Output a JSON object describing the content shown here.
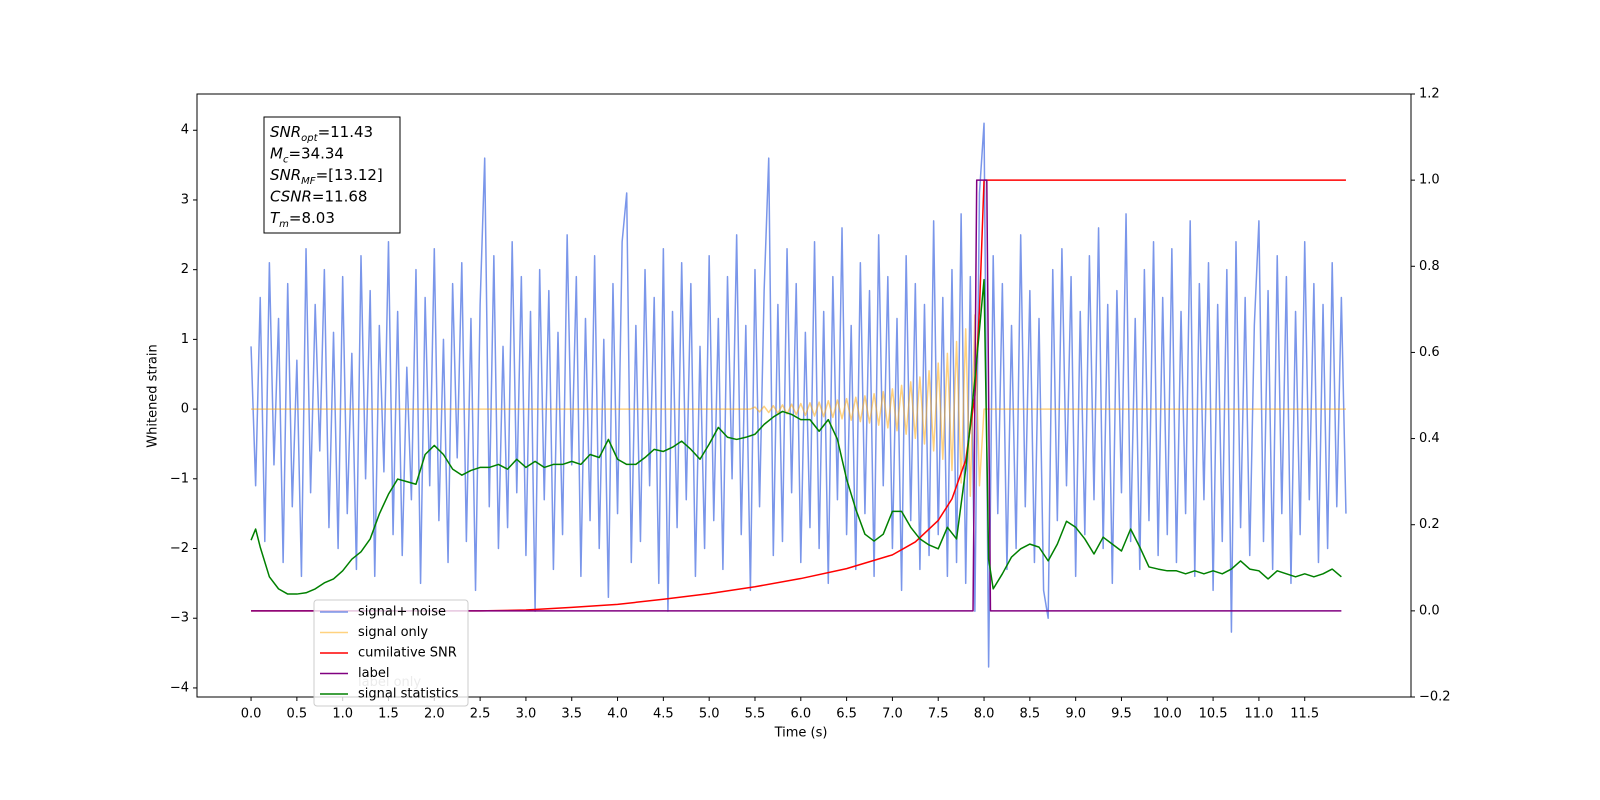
{
  "chart_data": {
    "type": "line",
    "xlabel": "Time (s)",
    "ylabel": "Whitened strain",
    "xlim": [
      -0.59,
      12.66
    ],
    "ylim": [
      -4.13,
      4.52
    ],
    "y2lim": [
      -0.2,
      1.2
    ],
    "xticks": [
      {
        "value": 0,
        "label": "0.0"
      },
      {
        "value": 0.5,
        "label": "0.5"
      },
      {
        "value": 1,
        "label": "1.0"
      },
      {
        "value": 1.5,
        "label": "1.5"
      },
      {
        "value": 2,
        "label": "2.0"
      },
      {
        "value": 2.5,
        "label": "2.5"
      },
      {
        "value": 3,
        "label": "3.0"
      },
      {
        "value": 3.5,
        "label": "3.5"
      },
      {
        "value": 4,
        "label": "4.0"
      },
      {
        "value": 4.5,
        "label": "4.5"
      },
      {
        "value": 5,
        "label": "5.0"
      },
      {
        "value": 5.5,
        "label": "5.5"
      },
      {
        "value": 6,
        "label": "6.0"
      },
      {
        "value": 6.5,
        "label": "6.5"
      },
      {
        "value": 7,
        "label": "7.0"
      },
      {
        "value": 7.5,
        "label": "7.5"
      },
      {
        "value": 8,
        "label": "8.0"
      },
      {
        "value": 8.5,
        "label": "8.5"
      },
      {
        "value": 9,
        "label": "9.0"
      },
      {
        "value": 9.5,
        "label": "9.5"
      },
      {
        "value": 10,
        "label": "10.0"
      },
      {
        "value": 10.5,
        "label": "10.5"
      },
      {
        "value": 11,
        "label": "11.0"
      },
      {
        "value": 11.5,
        "label": "11.5"
      }
    ],
    "yticks": [
      {
        "value": -4,
        "label": "−4"
      },
      {
        "value": -3,
        "label": "−3"
      },
      {
        "value": -2,
        "label": "−2"
      },
      {
        "value": -1,
        "label": "−1"
      },
      0,
      1,
      2,
      3,
      4
    ],
    "y2ticks": [
      {
        "value": -0.2,
        "label": "−0.2"
      },
      {
        "value": 0,
        "label": "0.0"
      },
      {
        "value": 0.2,
        "label": "0.2"
      },
      {
        "value": 0.4,
        "label": "0.4"
      },
      {
        "value": 0.6,
        "label": "0.6"
      },
      {
        "value": 0.8,
        "label": "0.8"
      },
      {
        "value": 1,
        "label": "1.0"
      },
      {
        "value": 1.2,
        "label": "1.2"
      }
    ],
    "grid": false,
    "x": [
      0,
      0.05,
      0.1,
      0.15,
      0.2,
      0.25,
      0.3,
      0.35,
      0.4,
      0.45,
      0.5,
      0.55,
      0.6,
      0.65,
      0.7,
      0.75,
      0.8,
      0.85,
      0.9,
      0.95,
      1,
      1.05,
      1.1,
      1.15,
      1.2,
      1.25,
      1.3,
      1.35,
      1.4,
      1.45,
      1.5,
      1.55,
      1.6,
      1.65,
      1.7,
      1.75,
      1.8,
      1.85,
      1.9,
      1.95,
      2,
      2.05,
      2.1,
      2.15,
      2.2,
      2.25,
      2.3,
      2.35,
      2.4,
      2.45,
      2.5,
      2.55,
      2.6,
      2.65,
      2.7,
      2.75,
      2.8,
      2.85,
      2.9,
      2.95,
      3,
      3.05,
      3.1,
      3.15,
      3.2,
      3.25,
      3.3,
      3.35,
      3.4,
      3.45,
      3.5,
      3.55,
      3.6,
      3.65,
      3.7,
      3.75,
      3.8,
      3.85,
      3.9,
      3.95,
      4,
      4.05,
      4.1,
      4.15,
      4.2,
      4.25,
      4.3,
      4.35,
      4.4,
      4.45,
      4.5,
      4.55,
      4.6,
      4.65,
      4.7,
      4.75,
      4.8,
      4.85,
      4.9,
      4.95,
      5,
      5.05,
      5.1,
      5.15,
      5.2,
      5.25,
      5.3,
      5.35,
      5.4,
      5.45,
      5.5,
      5.55,
      5.6,
      5.65,
      5.7,
      5.75,
      5.8,
      5.85,
      5.9,
      5.95,
      6,
      6.05,
      6.1,
      6.15,
      6.2,
      6.25,
      6.3,
      6.35,
      6.4,
      6.45,
      6.5,
      6.55,
      6.6,
      6.65,
      6.7,
      6.75,
      6.8,
      6.85,
      6.9,
      6.95,
      7,
      7.05,
      7.1,
      7.15,
      7.2,
      7.25,
      7.3,
      7.35,
      7.4,
      7.45,
      7.5,
      7.55,
      7.6,
      7.65,
      7.7,
      7.75,
      7.8,
      7.85,
      7.9,
      7.95,
      8,
      8.05,
      8.1,
      8.15,
      8.2,
      8.25,
      8.3,
      8.35,
      8.4,
      8.45,
      8.5,
      8.55,
      8.6,
      8.65,
      8.7,
      8.75,
      8.8,
      8.85,
      8.9,
      8.95,
      9,
      9.05,
      9.1,
      9.15,
      9.2,
      9.25,
      9.3,
      9.35,
      9.4,
      9.45,
      9.5,
      9.55,
      9.6,
      9.65,
      9.7,
      9.75,
      9.8,
      9.85,
      9.9,
      9.95,
      10,
      10.05,
      10.1,
      10.15,
      10.2,
      10.25,
      10.3,
      10.35,
      10.4,
      10.45,
      10.5,
      10.55,
      10.6,
      10.65,
      10.7,
      10.75,
      10.8,
      10.85,
      10.9,
      10.95,
      11,
      11.05,
      11.1,
      11.15,
      11.2,
      11.25,
      11.3,
      11.35,
      11.4,
      11.45,
      11.5,
      11.55,
      11.6,
      11.65,
      11.7,
      11.75,
      11.8,
      11.85,
      11.9,
      11.95
    ],
    "series": [
      {
        "name": "signal+ noise",
        "color": "#4169e1",
        "alpha": 0.7,
        "axis": "y",
        "values": [
          0.9,
          -1.1,
          1.6,
          -1.9,
          2.1,
          -0.8,
          1.3,
          -2.2,
          1.8,
          -1.4,
          0.7,
          -2.4,
          2.3,
          -1.2,
          1.5,
          -0.6,
          2.0,
          -1.7,
          1.1,
          -2.0,
          1.9,
          -1.5,
          0.8,
          -2.3,
          2.2,
          -1.0,
          1.7,
          -2.4,
          1.2,
          -0.9,
          2.4,
          -1.8,
          1.4,
          -2.1,
          0.6,
          -1.3,
          2.0,
          -2.5,
          1.6,
          -1.1,
          2.3,
          -1.6,
          1.0,
          -2.2,
          1.8,
          -0.7,
          2.1,
          -1.9,
          1.3,
          -2.6,
          1.5,
          3.6,
          -1.4,
          2.2,
          -2.0,
          0.9,
          -1.7,
          2.4,
          -1.2,
          1.9,
          -2.1,
          1.4,
          -2.9,
          2.0,
          -1.3,
          1.7,
          -2.3,
          1.1,
          -1.8,
          2.5,
          -0.8,
          1.9,
          -2.4,
          1.3,
          -1.6,
          2.2,
          -2.0,
          1.0,
          -2.7,
          1.8,
          -1.5,
          2.4,
          3.1,
          -2.2,
          1.2,
          -1.9,
          2.0,
          -1.1,
          1.6,
          -2.5,
          2.3,
          -2.9,
          1.4,
          -1.7,
          2.1,
          -1.3,
          1.8,
          -2.4,
          0.9,
          -2.0,
          2.2,
          -1.6,
          1.3,
          -2.3,
          1.9,
          -1.0,
          2.5,
          -1.8,
          1.2,
          -2.6,
          2.0,
          -1.4,
          1.7,
          3.6,
          -2.1,
          1.5,
          -1.9,
          2.3,
          -1.2,
          1.8,
          -2.2,
          1.1,
          -1.7,
          2.4,
          -2.0,
          1.4,
          -2.5,
          1.9,
          -1.3,
          2.6,
          -1.8,
          1.2,
          -2.3,
          2.1,
          -1.5,
          1.7,
          -2.4,
          2.5,
          -1.1,
          1.9,
          -2.0,
          1.3,
          -2.6,
          2.2,
          -1.6,
          1.8,
          -2.3,
          1.5,
          -2.1,
          2.7,
          -1.8,
          1.6,
          -2.4,
          2.0,
          -2.2,
          2.8,
          -2.5,
          1.9,
          -2.9,
          3.1,
          4.1,
          -3.7,
          2.2,
          -1.5,
          1.8,
          -2.3,
          1.2,
          -2.0,
          2.5,
          -1.4,
          1.7,
          -2.2,
          1.3,
          -2.6,
          -3.0,
          2.0,
          -1.6,
          2.3,
          -1.1,
          1.9,
          -2.4,
          1.4,
          -1.8,
          2.2,
          -1.3,
          2.6,
          -2.0,
          1.5,
          -2.5,
          1.7,
          -1.2,
          2.8,
          -1.9,
          1.3,
          -2.3,
          2.0,
          -1.6,
          2.4,
          -2.1,
          1.6,
          -1.8,
          2.3,
          -2.2,
          1.4,
          -1.5,
          2.7,
          -2.4,
          1.8,
          -1.3,
          2.1,
          -2.6,
          1.5,
          -1.9,
          2.0,
          -3.2,
          2.4,
          -1.7,
          1.6,
          -2.1,
          1.2,
          2.7,
          -1.9,
          1.7,
          -2.3,
          2.2,
          -1.5,
          1.9,
          -2.5,
          1.4,
          -1.8,
          2.4,
          -1.3,
          1.8,
          -2.2,
          1.5,
          -2.0,
          2.1,
          -1.4,
          1.6,
          -1.5
        ]
      },
      {
        "name": "signal only",
        "color": "#ffa500",
        "alpha": 0.5,
        "axis": "y",
        "values": [
          0,
          0,
          0,
          0,
          0,
          0,
          0,
          0,
          0,
          0,
          0,
          0,
          0,
          0,
          0,
          0,
          0,
          0,
          0,
          0,
          0,
          0,
          0,
          0,
          0,
          0,
          0,
          0,
          0,
          0,
          0,
          0,
          0,
          0,
          0,
          0,
          0,
          0,
          0,
          0,
          0,
          0,
          0,
          0,
          0,
          0,
          0,
          0,
          0,
          0,
          0,
          0,
          0,
          0,
          0,
          0,
          0,
          0,
          0,
          0,
          0,
          0,
          0,
          0,
          0,
          0,
          0,
          0,
          0,
          0,
          0,
          0,
          0,
          0,
          0,
          0,
          0,
          0,
          0,
          0,
          0,
          0,
          0,
          0,
          0,
          0,
          0,
          0,
          0,
          0,
          0,
          0,
          0,
          0,
          0,
          0,
          0,
          0,
          0,
          0,
          0,
          0,
          0,
          0,
          0,
          0,
          0,
          0,
          0,
          0,
          0.03,
          -0.04,
          0.04,
          -0.05,
          0.05,
          -0.06,
          0.06,
          -0.07,
          0.07,
          -0.08,
          0.08,
          -0.09,
          0.09,
          -0.1,
          0.1,
          -0.11,
          0.12,
          -0.12,
          0.13,
          -0.14,
          0.15,
          -0.16,
          0.17,
          -0.18,
          0.19,
          -0.2,
          0.22,
          -0.23,
          0.25,
          -0.27,
          0.29,
          -0.31,
          0.34,
          -0.36,
          0.39,
          -0.42,
          0.46,
          -0.5,
          0.55,
          -0.6,
          0.66,
          -0.72,
          0.8,
          -0.88,
          0.97,
          -1.06,
          1.15,
          -1.25,
          1.35,
          -1.1,
          0,
          0,
          0,
          0,
          0,
          0,
          0,
          0,
          0,
          0,
          0,
          0,
          0,
          0,
          0,
          0,
          0,
          0,
          0,
          0,
          0,
          0,
          0,
          0,
          0,
          0,
          0,
          0,
          0,
          0,
          0,
          0,
          0,
          0,
          0,
          0,
          0,
          0,
          0,
          0,
          0,
          0,
          0,
          0,
          0,
          0,
          0,
          0,
          0,
          0,
          0,
          0,
          0,
          0,
          0,
          0,
          0,
          0,
          0,
          0,
          0,
          0,
          0,
          0,
          0,
          0,
          0,
          0,
          0,
          0,
          0,
          0,
          0,
          0,
          0,
          0,
          0,
          0,
          0,
          0
        ]
      },
      {
        "name": "cumilative SNR",
        "color": "#ff0000",
        "axis": "y2",
        "x": [
          0,
          2.5,
          3,
          3.5,
          4,
          4.5,
          5,
          5.5,
          6,
          6.5,
          7,
          7.25,
          7.5,
          7.65,
          7.8,
          7.9,
          7.95,
          8.0,
          8.03,
          11.95
        ],
        "values": [
          0,
          0,
          0.002,
          0.008,
          0.015,
          0.027,
          0.04,
          0.056,
          0.075,
          0.098,
          0.13,
          0.16,
          0.21,
          0.26,
          0.35,
          0.5,
          0.7,
          1.0,
          1.0,
          1.0
        ]
      },
      {
        "name": "label",
        "color": "#800080",
        "axis": "y2",
        "x": [
          0,
          7.88,
          7.92,
          8.03,
          8.07,
          11.9
        ],
        "values": [
          0,
          0,
          1,
          1,
          0,
          0
        ]
      },
      {
        "name": "signal statistics",
        "color": "#008000",
        "axis": "y2",
        "x": [
          0,
          0.05,
          0.1,
          0.2,
          0.3,
          0.4,
          0.5,
          0.6,
          0.7,
          0.8,
          0.9,
          1.0,
          1.1,
          1.2,
          1.3,
          1.4,
          1.5,
          1.6,
          1.7,
          1.8,
          1.9,
          2.0,
          2.1,
          2.2,
          2.3,
          2.4,
          2.5,
          2.6,
          2.7,
          2.8,
          2.9,
          3.0,
          3.1,
          3.2,
          3.3,
          3.4,
          3.5,
          3.6,
          3.7,
          3.8,
          3.9,
          4.0,
          4.1,
          4.2,
          4.3,
          4.4,
          4.5,
          4.6,
          4.7,
          4.8,
          4.9,
          5.0,
          5.1,
          5.2,
          5.3,
          5.4,
          5.5,
          5.6,
          5.7,
          5.8,
          5.9,
          6.0,
          6.1,
          6.2,
          6.3,
          6.4,
          6.5,
          6.6,
          6.7,
          6.8,
          6.9,
          7.0,
          7.1,
          7.2,
          7.3,
          7.4,
          7.5,
          7.6,
          7.7,
          7.8,
          7.9,
          8.0,
          8.05,
          8.1,
          8.2,
          8.3,
          8.4,
          8.5,
          8.6,
          8.7,
          8.8,
          8.9,
          9.0,
          9.1,
          9.2,
          9.3,
          9.4,
          9.5,
          9.6,
          9.7,
          9.8,
          9.9,
          10.0,
          10.1,
          10.2,
          10.3,
          10.4,
          10.5,
          10.6,
          10.7,
          10.8,
          10.9,
          11.0,
          11.1,
          11.2,
          11.3,
          11.4,
          11.5,
          11.6,
          11.7,
          11.8,
          11.9
        ],
        "values": [
          0.164,
          0.19,
          0.148,
          0.079,
          0.051,
          0.039,
          0.039,
          0.042,
          0.051,
          0.065,
          0.074,
          0.093,
          0.12,
          0.137,
          0.167,
          0.225,
          0.271,
          0.306,
          0.3,
          0.294,
          0.363,
          0.384,
          0.363,
          0.329,
          0.315,
          0.326,
          0.333,
          0.333,
          0.34,
          0.329,
          0.352,
          0.333,
          0.347,
          0.333,
          0.34,
          0.34,
          0.347,
          0.34,
          0.363,
          0.356,
          0.398,
          0.352,
          0.34,
          0.34,
          0.356,
          0.375,
          0.37,
          0.38,
          0.394,
          0.375,
          0.352,
          0.387,
          0.426,
          0.403,
          0.398,
          0.403,
          0.41,
          0.433,
          0.45,
          0.463,
          0.456,
          0.444,
          0.444,
          0.417,
          0.444,
          0.398,
          0.306,
          0.236,
          0.178,
          0.162,
          0.178,
          0.231,
          0.231,
          0.194,
          0.167,
          0.153,
          0.144,
          0.194,
          0.167,
          0.329,
          0.537,
          0.769,
          0.12,
          0.051,
          0.086,
          0.125,
          0.144,
          0.155,
          0.148,
          0.116,
          0.155,
          0.208,
          0.194,
          0.167,
          0.132,
          0.171,
          0.155,
          0.139,
          0.19,
          0.148,
          0.102,
          0.097,
          0.093,
          0.093,
          0.086,
          0.093,
          0.086,
          0.093,
          0.086,
          0.097,
          0.116,
          0.097,
          0.093,
          0.074,
          0.093,
          0.086,
          0.079,
          0.086,
          0.079,
          0.086,
          0.097,
          0.079
        ]
      }
    ],
    "legend": "lower left",
    "legend_overlap_text": "label only",
    "stats_box": [
      {
        "main": "SNR",
        "sub": "opt",
        "rest": "=11.43"
      },
      {
        "main": "M",
        "sub": "c",
        "rest": "=34.34"
      },
      {
        "main": "SNR",
        "sub": "MF",
        "rest": "=[13.12]"
      },
      {
        "main": "CSNR",
        "sub": "",
        "rest": "=11.68"
      },
      {
        "main": "T",
        "sub": "m",
        "rest": "=8.03"
      }
    ]
  }
}
